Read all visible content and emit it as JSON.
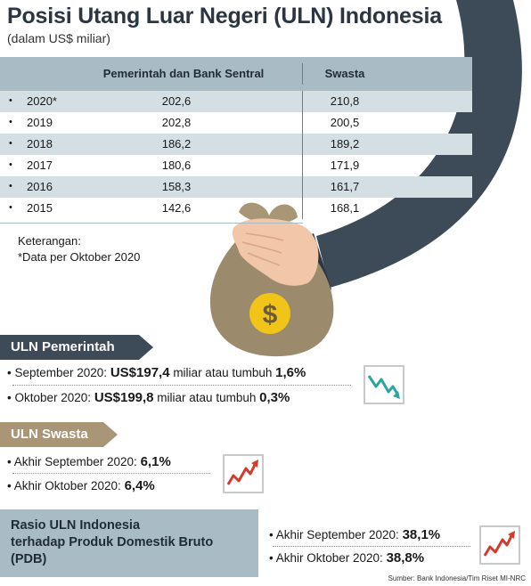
{
  "title": "Posisi Utang Luar Negeri (ULN) Indonesia",
  "subtitle": "(dalam US$ miliar)",
  "table": {
    "headers": [
      "Pemerintah dan Bank Sentral",
      "Swasta"
    ],
    "rows": [
      {
        "year": "2020*",
        "pemerintah": "202,6",
        "swasta": "210,8"
      },
      {
        "year": "2019",
        "pemerintah": "202,8",
        "swasta": "200,5"
      },
      {
        "year": "2018",
        "pemerintah": "186,2",
        "swasta": "189,2"
      },
      {
        "year": "2017",
        "pemerintah": "180,6",
        "swasta": "171,9"
      },
      {
        "year": "2016",
        "pemerintah": "158,3",
        "swasta": "161,7"
      },
      {
        "year": "2015",
        "pemerintah": "142,6",
        "swasta": "168,1"
      }
    ]
  },
  "note": {
    "label": "Keterangan:",
    "text": "*Data per Oktober 2020"
  },
  "bag_symbol": "$",
  "uln_pemerintah": {
    "title": "ULN Pemerintah",
    "sept_label": "September 2020:",
    "sept_value": "US$197,4",
    "sept_mid": "miliar atau tumbuh",
    "sept_growth": "1,6%",
    "okt_label": "Oktober 2020:",
    "okt_value": "US$199,8",
    "okt_mid": "miliar atau tumbuh",
    "okt_growth": "0,3%",
    "icon": "trend-down-icon"
  },
  "uln_swasta": {
    "title": "ULN Swasta",
    "sept_label": "Akhir September 2020:",
    "sept_value": "6,1%",
    "okt_label": "Akhir Oktober 2020:",
    "okt_value": "6,4%",
    "icon": "trend-up-icon"
  },
  "rasio": {
    "title_lines": [
      "Rasio ULN Indonesia",
      "terhadap Produk Domestik Bruto",
      "(PDB)"
    ],
    "sept_label": "Akhir September 2020:",
    "sept_value": "38,1%",
    "okt_label": "Akhir Oktober 2020:",
    "okt_value": "38,8%",
    "icon": "trend-up-icon"
  },
  "source": "Sumber: Bank Indonesia/Tim Riset MI-NRC",
  "colors": {
    "dark_slate": "#3d4a57",
    "table_header": "#a9bcc6",
    "row_shade": "#d3dfe3",
    "tan": "#a89677",
    "bag": "#9c8a6c",
    "trend_teal": "#2aa5a0",
    "trend_red": "#d23b2e"
  }
}
